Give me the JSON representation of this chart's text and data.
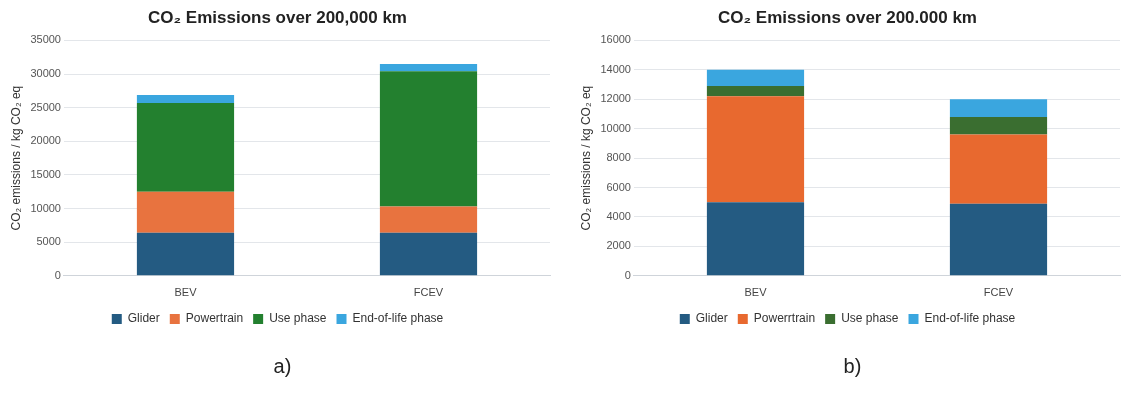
{
  "chart_data": [
    {
      "type": "bar",
      "title": "CO₂ Emissions over 200,000 km",
      "ylabel": "CO₂ emissions / kg CO₂ eq",
      "categories": [
        "BEV",
        "FCEV"
      ],
      "stacked": true,
      "ylim": [
        0,
        35000
      ],
      "yticks": [
        0,
        5000,
        10000,
        15000,
        20000,
        25000,
        30000,
        35000
      ],
      "grid": "y",
      "legend": "bottom",
      "annotations": [
        "a)"
      ],
      "series": [
        {
          "name": "Glider",
          "color": "#245b82",
          "values": [
            6400,
            6400
          ]
        },
        {
          "name": "Powertrain",
          "color": "#e8733f",
          "values": [
            6100,
            3900
          ]
        },
        {
          "name": "Use phase",
          "color": "#23802f",
          "values": [
            13200,
            20100
          ]
        },
        {
          "name": "End-of-life phase",
          "color": "#3aa6df",
          "values": [
            1200,
            1100
          ]
        }
      ]
    },
    {
      "type": "bar",
      "title": "CO₂ Emissions over 200.000 km",
      "ylabel": "CO₂ emissions / kg CO₂ eq",
      "categories": [
        "BEV",
        "FCEV"
      ],
      "stacked": true,
      "ylim": [
        0,
        16000
      ],
      "yticks": [
        0,
        2000,
        4000,
        6000,
        8000,
        10000,
        12000,
        14000,
        16000
      ],
      "grid": "y",
      "legend": "bottom",
      "annotations": [
        "b)"
      ],
      "series": [
        {
          "name": "Glider",
          "color": "#245b82",
          "values": [
            5000,
            4900
          ]
        },
        {
          "name": "Powerrtrain",
          "color": "#e8692f",
          "values": [
            7200,
            4700
          ]
        },
        {
          "name": "Use phase",
          "color": "#3a6e30",
          "values": [
            700,
            1200
          ]
        },
        {
          "name": "End-of-life phase",
          "color": "#3aa6df",
          "values": [
            1100,
            1200
          ]
        }
      ]
    }
  ]
}
